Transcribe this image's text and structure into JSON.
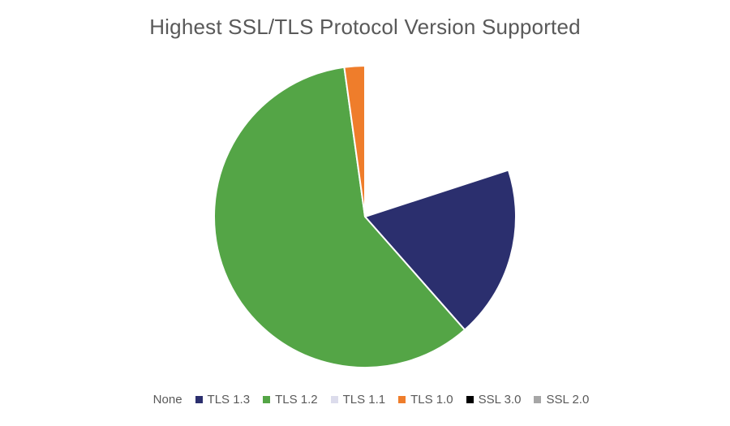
{
  "chart_data": {
    "type": "pie",
    "title": "Highest SSL/TLS Protocol Version Supported",
    "legend_position": "bottom",
    "categories": [
      "None",
      "TLS 1.3",
      "TLS 1.2",
      "TLS 1.1",
      "TLS 1.0",
      "SSL 3.0",
      "SSL 2.0"
    ],
    "values": [
      20,
      18.5,
      59.3,
      0,
      2.2,
      0,
      0
    ],
    "exploded": [
      true,
      false,
      false,
      false,
      false,
      false,
      false
    ],
    "colors": [
      "#ffffff",
      "#2b2f6e",
      "#54a546",
      "#dcdcec",
      "#ef7d2b",
      "#000000",
      "#a6a6a6"
    ]
  }
}
